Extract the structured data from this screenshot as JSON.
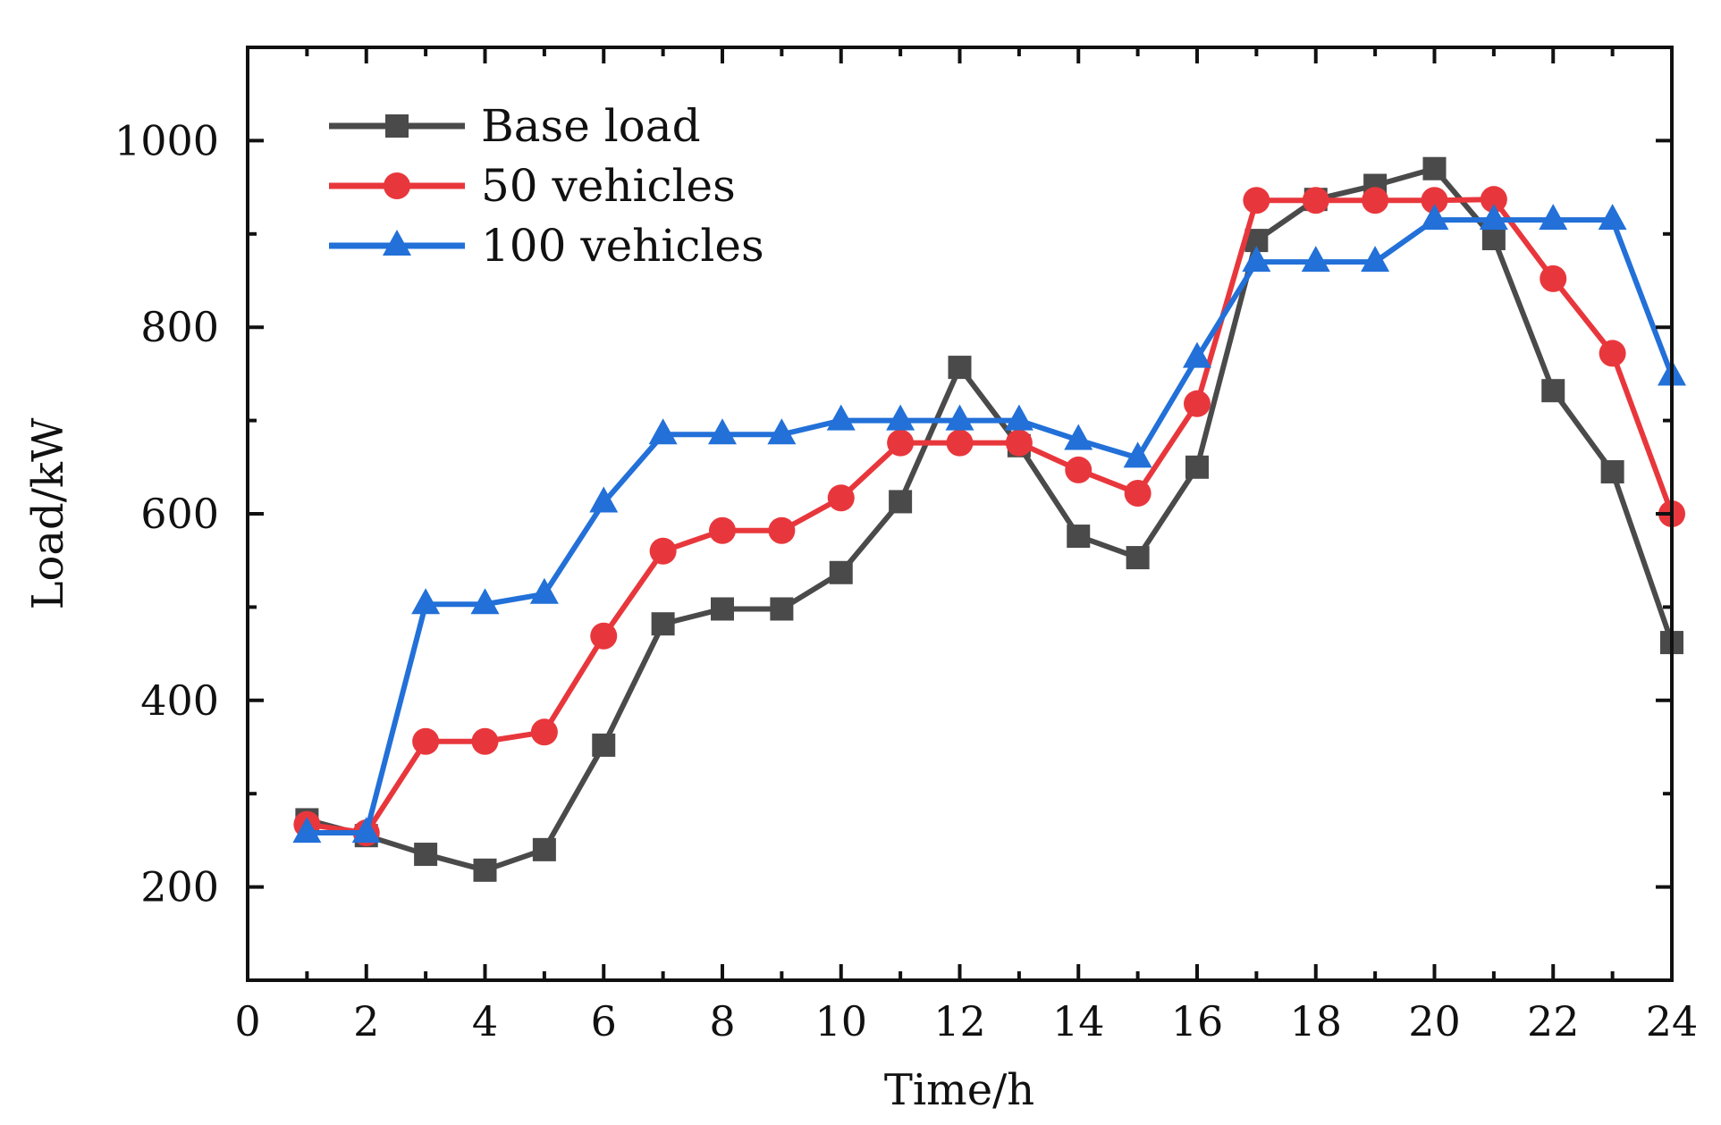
{
  "chart_data": {
    "type": "line",
    "title": "",
    "xlabel": "Time/h",
    "ylabel": "Load/kW",
    "xlim": [
      0,
      24
    ],
    "ylim": [
      100,
      1100
    ],
    "xticks": [
      0,
      2,
      4,
      6,
      8,
      10,
      12,
      14,
      16,
      18,
      20,
      22,
      24
    ],
    "yticks": [
      200,
      400,
      600,
      800,
      1000
    ],
    "legend_position": "top-left",
    "grid": false,
    "x": [
      1,
      2,
      3,
      4,
      5,
      6,
      7,
      8,
      9,
      10,
      11,
      12,
      13,
      14,
      15,
      16,
      17,
      18,
      19,
      20,
      21,
      22,
      23,
      24
    ],
    "series": [
      {
        "name": "Base load",
        "color": "#4a4a4a",
        "marker": "square",
        "values": [
          272,
          255,
          235,
          218,
          240,
          352,
          482,
          498,
          498,
          537,
          613,
          757,
          673,
          576,
          553,
          650,
          893,
          937,
          952,
          970,
          895,
          732,
          645,
          462
        ]
      },
      {
        "name": "50 vehicles",
        "color": "#e8373c",
        "marker": "circle",
        "values": [
          267,
          258,
          356,
          356,
          366,
          469,
          560,
          582,
          582,
          617,
          676,
          676,
          676,
          647,
          622,
          718,
          936,
          936,
          936,
          936,
          937,
          852,
          772,
          600
        ]
      },
      {
        "name": "100 vehicles",
        "color": "#2270d8",
        "marker": "triangle",
        "values": [
          258,
          258,
          503,
          503,
          514,
          612,
          685,
          685,
          685,
          700,
          700,
          700,
          700,
          679,
          660,
          767,
          870,
          870,
          870,
          915,
          915,
          915,
          915,
          748
        ]
      }
    ]
  }
}
